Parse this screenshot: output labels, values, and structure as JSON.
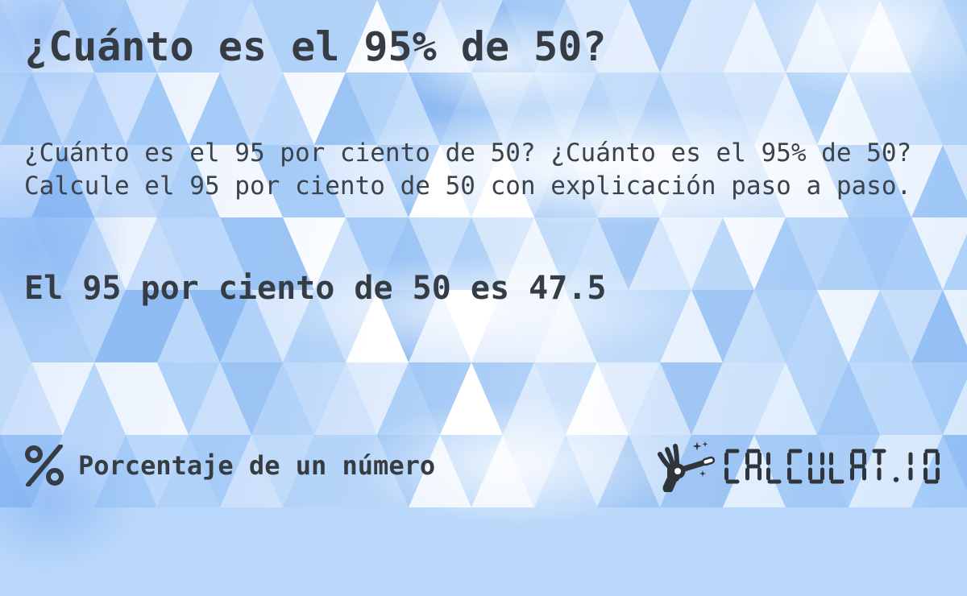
{
  "card": {
    "title": "¿Cuánto es el 95% de 50?",
    "description": "¿Cuánto es el 95 por ciento de 50? ¿Cuánto es el 95% de 50? Calcule el 95 por ciento de 50 con explicación paso a paso.",
    "answer": "El 95 por ciento de 50 es 47.5"
  },
  "footer": {
    "category": {
      "icon": "percent-icon",
      "label": "Porcentaje de un número"
    },
    "brand": {
      "icon": "magic-wand-hand-icon",
      "text": "CALCULAT.IO"
    }
  },
  "colors": {
    "text": "#363c43",
    "logo": "#2f353b",
    "background_base": "#b9d7fa",
    "mosaic_palette": [
      "#8fbcf2",
      "#9cc5f5",
      "#a8cdf7",
      "#b4d4f8",
      "#b4d4f8",
      "#c2dcfa",
      "#c2dcfa",
      "#d0e3fb",
      "#d0e3fb",
      "#deebfd",
      "#ecf4fe",
      "#ffffff",
      "#ffffff"
    ]
  }
}
